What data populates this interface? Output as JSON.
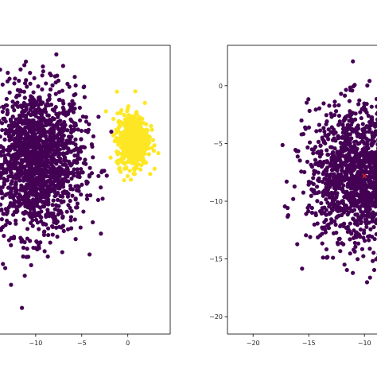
{
  "colors": {
    "background": "#ffffff",
    "axes_frame": "#000000",
    "class_0": "#440154",
    "class_1": "#fde725",
    "marker": "#d62728"
  },
  "chart_data": [
    {
      "type": "scatter",
      "title": "",
      "xlabel": "",
      "ylabel": "",
      "grid": false,
      "xlim": [
        -15.6,
        4.6
      ],
      "ylim": [
        -20.0,
        10.0
      ],
      "xticks": [
        -10,
        -5,
        0
      ],
      "xtick_labels": [
        "−10",
        "−5",
        "0"
      ],
      "yticks": [],
      "yticks_visible": false,
      "clusters": [
        {
          "label_index": 0,
          "color": "#440154",
          "center": [
            -10.0,
            -2.0
          ],
          "spread": [
            2.6,
            3.8
          ],
          "count": 1700
        },
        {
          "label_index": 1,
          "color": "#fde725",
          "center": [
            0.5,
            0.2
          ],
          "spread": [
            0.85,
            1.4
          ],
          "count": 600
        }
      ],
      "notes_visible": "left axes cut off at left edge of image"
    },
    {
      "type": "scatter",
      "title": "",
      "xlabel": "",
      "ylabel": "",
      "grid": false,
      "xlim": [
        -22.3,
        -7.3
      ],
      "ylim": [
        -21.5,
        3.5
      ],
      "xticks": [
        -20,
        -15,
        -10
      ],
      "xtick_labels": [
        "−20",
        "−15",
        "−10"
      ],
      "yticks": [
        0,
        -5,
        -10,
        -15,
        -20
      ],
      "ytick_labels": [
        "0",
        "−5",
        "−10",
        "−15",
        "−20"
      ],
      "clusters": [
        {
          "label_index": 0,
          "color": "#440154",
          "center": [
            -10.0,
            -7.8
          ],
          "spread": [
            2.5,
            3.0
          ],
          "count": 1600
        }
      ],
      "highlight_point": {
        "x": -10.0,
        "y": -7.8,
        "color": "#d62728",
        "symbol": "x"
      },
      "notes_visible": "right axes cut off at right edge of image"
    }
  ]
}
